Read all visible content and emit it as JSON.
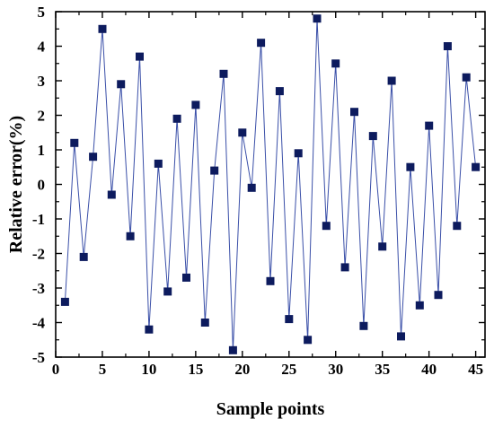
{
  "chart_data": {
    "type": "line",
    "xlabel": "Sample points",
    "ylabel": "Relative error(%)",
    "xlim": [
      0,
      46
    ],
    "ylim": [
      -5,
      5
    ],
    "x_ticks": [
      0,
      5,
      10,
      15,
      20,
      25,
      30,
      35,
      40,
      45
    ],
    "y_ticks": [
      -5,
      -4,
      -3,
      -2,
      -1,
      0,
      1,
      2,
      3,
      4,
      5
    ],
    "grid": false,
    "line_color": "#3a4fa8",
    "marker_color": "#0d1b5e",
    "marker": "square",
    "x": [
      1,
      2,
      3,
      4,
      5,
      6,
      7,
      8,
      9,
      10,
      11,
      12,
      13,
      14,
      15,
      16,
      17,
      18,
      19,
      20,
      21,
      22,
      23,
      24,
      25,
      26,
      27,
      28,
      29,
      30,
      31,
      32,
      33,
      34,
      35,
      36,
      37,
      38,
      39,
      40,
      41,
      42,
      43,
      44,
      45
    ],
    "y": [
      -3.4,
      1.2,
      -2.1,
      0.8,
      4.5,
      -0.3,
      2.9,
      -1.5,
      3.7,
      -4.2,
      0.6,
      -3.1,
      1.9,
      -2.7,
      2.3,
      -4.0,
      0.4,
      3.2,
      -4.8,
      1.5,
      -0.1,
      4.1,
      -2.8,
      2.7,
      -3.9,
      0.9,
      -4.5,
      4.8,
      -1.2,
      3.5,
      -2.4,
      2.1,
      -4.1,
      1.4,
      -1.8,
      3.0,
      -4.4,
      0.5,
      -3.5,
      1.7,
      -3.2,
      4.0,
      -1.2,
      3.1,
      0.5
    ]
  }
}
